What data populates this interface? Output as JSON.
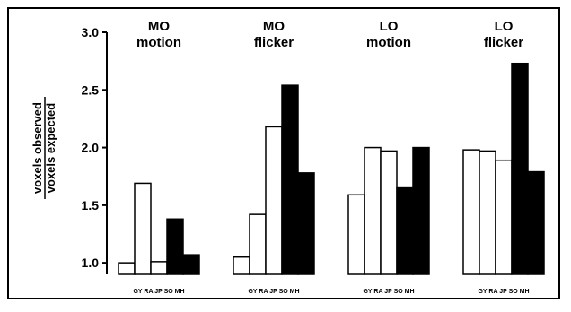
{
  "chart_data": {
    "type": "bar",
    "ylabel_numerator": "voxels observed",
    "ylabel_denominator": "voxels expected",
    "ylim": [
      0.9,
      3.0
    ],
    "yticks": [
      "1.0",
      "1.5",
      "2.0",
      "2.5",
      "3.0"
    ],
    "ytick_values": [
      1.0,
      1.5,
      2.0,
      2.5,
      3.0
    ],
    "categories": [
      "GY",
      "RA",
      "JP",
      "SO",
      "MH"
    ],
    "category_axis_label": "GY RA JP SO MH",
    "bar_fill": [
      "#ffffff",
      "#ffffff",
      "#ffffff",
      "#000000",
      "#000000"
    ],
    "groups": [
      {
        "title_line1": "MO",
        "title_line2": "motion",
        "values": [
          1.0,
          1.69,
          1.01,
          1.38,
          1.07
        ]
      },
      {
        "title_line1": "MO",
        "title_line2": "flicker",
        "values": [
          1.05,
          1.42,
          2.18,
          2.54,
          1.78
        ]
      },
      {
        "title_line1": "LO",
        "title_line2": "motion",
        "values": [
          1.59,
          2.0,
          1.97,
          1.65,
          2.0
        ]
      },
      {
        "title_line1": "LO",
        "title_line2": "flicker",
        "values": [
          1.98,
          1.97,
          1.89,
          2.73,
          1.79
        ]
      }
    ]
  }
}
